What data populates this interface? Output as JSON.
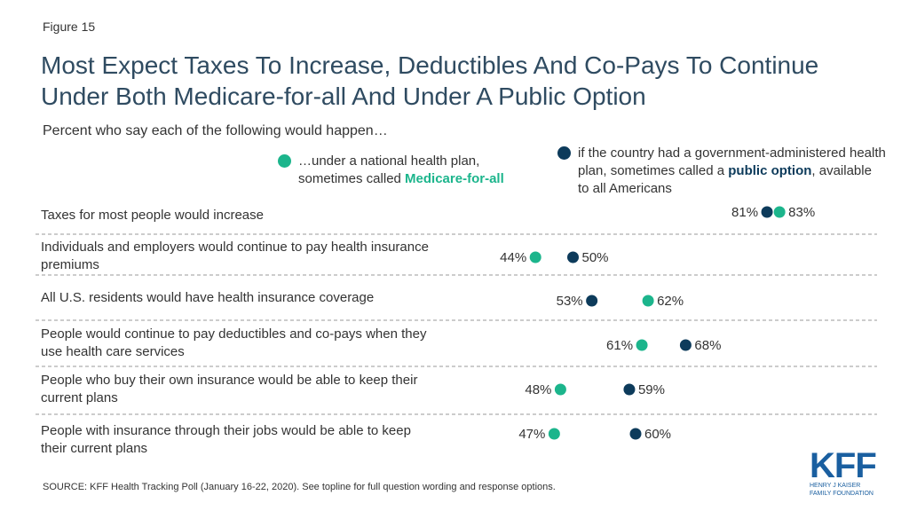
{
  "figure_label": "Figure 15",
  "title": "Most Expect Taxes To Increase, Deductibles And Co-Pays To Continue Under Both Medicare-for-all And Under A Public Option",
  "subtitle": "Percent who say each of the following would happen…",
  "legend": {
    "medicare": {
      "prefix": "…under a national health plan, sometimes called ",
      "emphasis": "Medicare-for-all",
      "suffix": "",
      "color": "#1cb58c"
    },
    "public_option": {
      "prefix": "if the country had a government-administered health plan, sometimes called a ",
      "emphasis": "public option",
      "suffix": ", available to all Americans",
      "color": "#0d3b5b"
    }
  },
  "chart_data": {
    "type": "scatter",
    "style": "dot-plot",
    "categories": [
      "Taxes for most people would increase",
      "Individuals and employers would continue to pay health insurance premiums",
      "All U.S. residents would have health insurance coverage",
      "People would continue to pay deductibles and co-pays when they use health care services",
      "People who buy their own insurance would be able to keep their current plans",
      "People with insurance through their jobs would be able to keep their current plans"
    ],
    "series": [
      {
        "name": "…under a national health plan, sometimes called Medicare-for-all",
        "color": "#1cb58c",
        "values": [
          83,
          44,
          62,
          61,
          48,
          47
        ]
      },
      {
        "name": "if the country had a government-administered health plan, sometimes called a public option, available to all Americans",
        "color": "#0d3b5b",
        "values": [
          81,
          50,
          53,
          68,
          59,
          60
        ]
      }
    ],
    "value_suffix": "%",
    "grid": "dashed row separators"
  },
  "source": "SOURCE: KFF Health Tracking Poll (January 16-22, 2020). See topline for full question wording and response options.",
  "logo": {
    "mark": "KFF",
    "line1": "HENRY J KAISER",
    "line2": "FAMILY FOUNDATION"
  }
}
